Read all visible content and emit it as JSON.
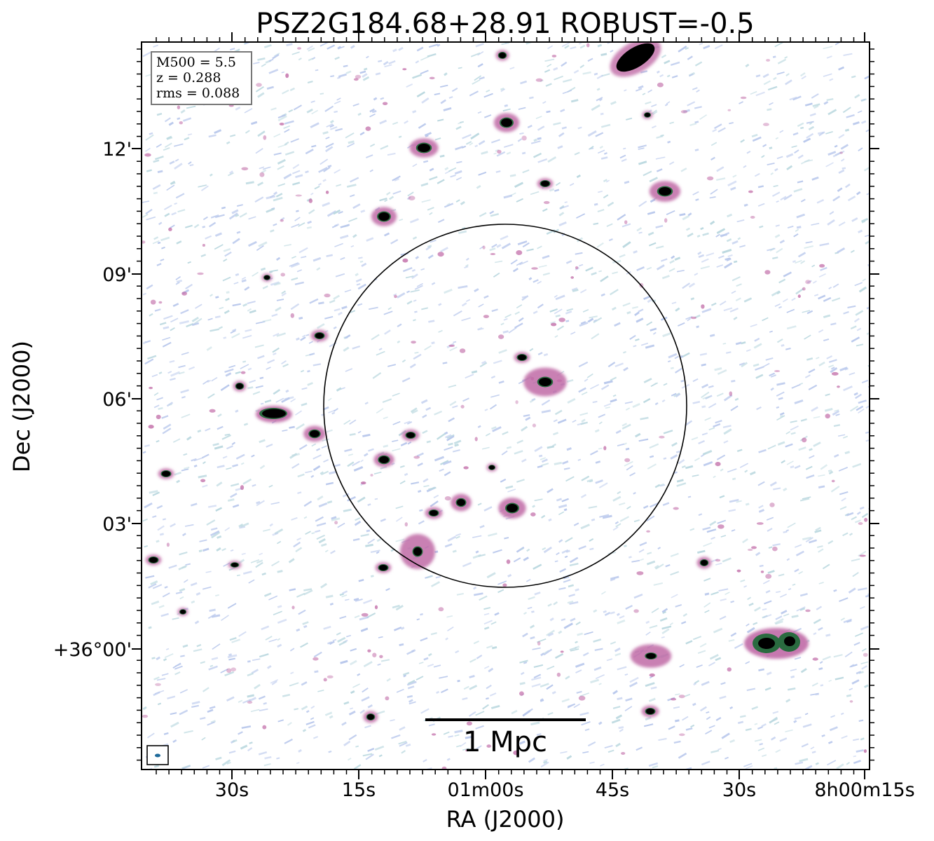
{
  "chart_data": {
    "type": "radio image",
    "title": "PSZ2G184.68+28.91 ROBUST=-0.5",
    "xlabel": "RA (J2000)",
    "ylabel": "Dec (J2000)",
    "x_tick_labels": [
      "30s",
      "15s",
      "01m00s",
      "45s",
      "30s",
      "8h00m15s"
    ],
    "y_tick_labels": [
      "12'",
      "09'",
      "06'",
      "03'",
      "+36°00'"
    ],
    "info_box": [
      "M500 = 5.5",
      "z = 0.288",
      "rms = 0.088"
    ],
    "scalebar_label": "1 Mpc",
    "colors": {
      "faint_noise": "#b9c8ec",
      "faint_noise_alt": "#bcd9e0",
      "mid_emission": "#c06aa6",
      "bright_emission": "#2a6b40",
      "peak": "#000000",
      "circle": "#000000"
    }
  }
}
